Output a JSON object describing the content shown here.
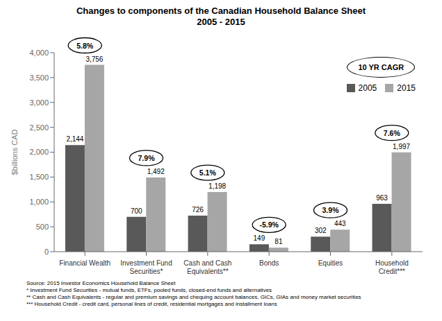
{
  "chart_data": {
    "type": "bar",
    "title": "Changes to components of the Canadian Household Balance Sheet",
    "subtitle": "2005 - 2015",
    "categories": [
      "Financial Wealth",
      "Investment Fund\nSecurities*",
      "Cash and Cash\nEquivalents**",
      "Bonds",
      "Equities",
      "Household\nCredit***"
    ],
    "series": [
      {
        "name": "2005",
        "color": "#595959",
        "values": [
          2144,
          700,
          726,
          149,
          302,
          963
        ],
        "value_labels": [
          "2,144",
          "700",
          "726",
          "149",
          "302",
          "963"
        ]
      },
      {
        "name": "2015",
        "color": "#a6a6a6",
        "values": [
          3756,
          1492,
          1198,
          81,
          443,
          1997
        ],
        "value_labels": [
          "3,756",
          "1,492",
          "1,198",
          "81",
          "443",
          "1,997"
        ]
      }
    ],
    "ylabel": "$billions CAD",
    "ylim": [
      0,
      4000
    ],
    "yticks": [
      0,
      500,
      {
        "value": 1000,
        "label": "1,000"
      },
      {
        "value": 1500,
        "label": "1,500"
      },
      {
        "value": 2000,
        "label": "2,000"
      },
      {
        "value": 2500,
        "label": "2,500"
      },
      {
        "value": 3000,
        "label": "3,000"
      },
      {
        "value": 3500,
        "label": "3,500"
      },
      {
        "value": 4000,
        "label": "4,000"
      }
    ],
    "data_labels": true,
    "grid": false,
    "legend": "upper right",
    "annotations_title": "10 YR CAGR",
    "annotations": [
      {
        "x": "Financial Wealth",
        "text": "5.8%"
      },
      {
        "x": "Investment Fund\nSecurities*",
        "text": "7.9%"
      },
      {
        "x": "Cash and Cash\nEquivalents**",
        "text": "5.1%"
      },
      {
        "x": "Bonds",
        "text": "-5.9%"
      },
      {
        "x": "Equities",
        "text": "3.9%"
      },
      {
        "x": "Household\nCredit***",
        "text": "7.6%"
      }
    ],
    "footnotes": [
      "Source: 2015 Investor Economics Household Balance Sheet",
      "* Investment Fund Securities - mutual funds, ETFs, pooled funds, closed-end funds and alternatives",
      "** Cash and Cash Equivalents - regular and premium savings and chequing account balances, GICs, GIAs and money market securities",
      "*** Household Credit - credit card, personal lines of credit, residential mortgages and installment loans"
    ]
  }
}
